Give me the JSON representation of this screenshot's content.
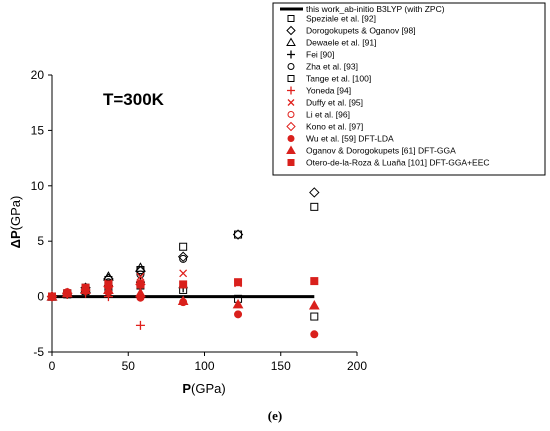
{
  "chart_data": {
    "type": "scatter",
    "annotation": "T=300K",
    "xlabel": {
      "bold": "P",
      "rest": "(GPa)"
    },
    "ylabel": {
      "bold": "ΔP",
      "rest": "(GPa)"
    },
    "xlim": [
      0,
      200
    ],
    "ylim": [
      -5,
      20
    ],
    "xticks": [
      0,
      50,
      100,
      150,
      200
    ],
    "yticks": [
      -5,
      0,
      5,
      10,
      15,
      20
    ],
    "xtick_labels": [
      "0",
      "50",
      "100",
      "150",
      "200"
    ],
    "ytick_labels": [
      "-5",
      "0",
      "5",
      "10",
      "15",
      "20"
    ],
    "legend_position": "top-right",
    "caption": "(e)",
    "reference_line": {
      "name": "this work_ab-initio B3LYP (with ZPC)",
      "points": [
        [
          0,
          0
        ],
        [
          172,
          0
        ]
      ]
    },
    "series": [
      {
        "name": "Speziale et al. [92]",
        "marker": "square-open",
        "color": "#000000",
        "points": [
          [
            0,
            0
          ],
          [
            10,
            0.3
          ],
          [
            22,
            0.8
          ],
          [
            37,
            1.5
          ],
          [
            58,
            2.4
          ],
          [
            86,
            4.5
          ],
          [
            122,
            5.6
          ],
          [
            172,
            8.1
          ]
        ]
      },
      {
        "name": "Dorogokupets & Oganov [98]",
        "marker": "diamond-open",
        "color": "#000000",
        "points": [
          [
            0,
            0
          ],
          [
            10,
            0.3
          ],
          [
            22,
            0.8
          ],
          [
            37,
            1.6
          ],
          [
            58,
            2.3
          ],
          [
            86,
            3.6
          ],
          [
            122,
            5.6
          ],
          [
            172,
            9.4
          ]
        ]
      },
      {
        "name": "Dewaele et al. [91]",
        "marker": "triangle-open",
        "color": "#000000",
        "points": [
          [
            0,
            0
          ],
          [
            10,
            0.3
          ],
          [
            22,
            0.7
          ],
          [
            37,
            1.8
          ],
          [
            58,
            2.6
          ]
        ]
      },
      {
        "name": "Fei [90]",
        "marker": "plus",
        "color": "#000000",
        "points": [
          [
            0,
            0
          ],
          [
            10,
            0.2
          ],
          [
            22,
            0.5
          ],
          [
            37,
            1.0
          ],
          [
            58,
            1.3
          ],
          [
            86,
            0.8
          ]
        ]
      },
      {
        "name": "Zha et al. [93]",
        "marker": "circle-open",
        "color": "#000000",
        "points": [
          [
            0,
            0
          ],
          [
            10,
            0.3
          ],
          [
            22,
            0.7
          ],
          [
            37,
            1.3
          ],
          [
            58,
            2.0
          ],
          [
            86,
            3.4
          ]
        ]
      },
      {
        "name": "Tange et al. [100]",
        "marker": "square-open",
        "color": "#000000",
        "points": [
          [
            0,
            0
          ],
          [
            10,
            0.2
          ],
          [
            22,
            0.5
          ],
          [
            37,
            0.8
          ],
          [
            58,
            1.0
          ],
          [
            86,
            0.6
          ],
          [
            122,
            -0.2
          ],
          [
            172,
            -1.8
          ]
        ]
      },
      {
        "name": "Yoneda [94]",
        "marker": "plus",
        "color": "#e0201c",
        "points": [
          [
            0,
            0
          ],
          [
            10,
            0.2
          ],
          [
            22,
            0.3
          ],
          [
            37,
            0.0
          ],
          [
            58,
            -2.6
          ]
        ]
      },
      {
        "name": "Duffy et al. [95]",
        "marker": "x",
        "color": "#e0201c",
        "points": [
          [
            0,
            0
          ],
          [
            10,
            0.3
          ],
          [
            22,
            0.7
          ],
          [
            37,
            1.2
          ],
          [
            58,
            1.8
          ],
          [
            86,
            2.1
          ],
          [
            122,
            1.2
          ]
        ]
      },
      {
        "name": "Li et al. [96]",
        "marker": "circle-open",
        "color": "#e0201c",
        "points": [
          [
            0,
            0
          ],
          [
            10,
            0.3
          ],
          [
            22,
            0.6
          ],
          [
            37,
            1.0
          ],
          [
            58,
            1.2
          ]
        ]
      },
      {
        "name": "Kono et al. [97]",
        "marker": "diamond-open",
        "color": "#e0201c",
        "points": [
          [
            0,
            0
          ],
          [
            10,
            0.3
          ],
          [
            22,
            0.6
          ],
          [
            37,
            0.9
          ],
          [
            58,
            1.1
          ]
        ]
      },
      {
        "name": "Wu et al. [59] DFT-LDA",
        "marker": "circle-filled",
        "color": "#d9201c",
        "points": [
          [
            0,
            0
          ],
          [
            10,
            0.4
          ],
          [
            22,
            0.5
          ],
          [
            37,
            0.4
          ],
          [
            58,
            -0.1
          ],
          [
            86,
            -0.5
          ],
          [
            122,
            -1.6
          ],
          [
            172,
            -3.4
          ]
        ]
      },
      {
        "name": "Oganov & Dorogokupets [61] DFT-GGA",
        "marker": "triangle-filled",
        "color": "#d9201c",
        "points": [
          [
            0,
            0
          ],
          [
            10,
            0.3
          ],
          [
            22,
            0.6
          ],
          [
            37,
            0.6
          ],
          [
            58,
            0.3
          ],
          [
            86,
            -0.4
          ],
          [
            122,
            -0.7
          ],
          [
            172,
            -0.8
          ]
        ]
      },
      {
        "name": "Otero-de-la-Roza & Luaña [101] DFT-GGA+EEC",
        "marker": "square-filled",
        "color": "#d9201c",
        "points": [
          [
            0,
            0
          ],
          [
            10,
            0.3
          ],
          [
            22,
            0.8
          ],
          [
            37,
            1.1
          ],
          [
            58,
            1.1
          ],
          [
            86,
            1.1
          ],
          [
            122,
            1.3
          ],
          [
            172,
            1.4
          ]
        ]
      }
    ]
  }
}
